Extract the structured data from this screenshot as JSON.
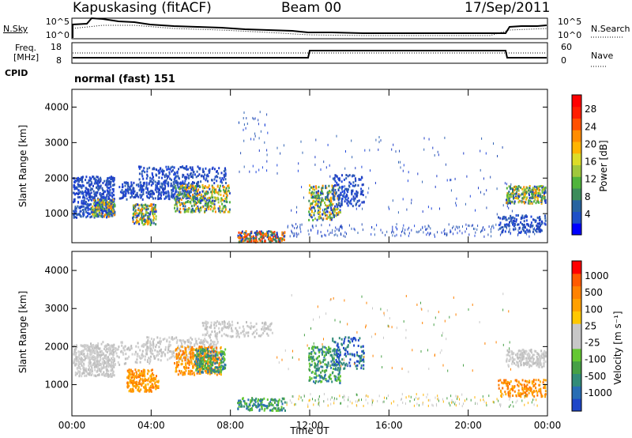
{
  "header": {
    "station": "Kapuskasing (fitACF)",
    "beam": "Beam 00",
    "date": "17/Sep/2011"
  },
  "sky_panel": {
    "left_label": "N.Sky",
    "right_label": "N.Search",
    "y_ticks_left": [
      "10^5",
      "10^0"
    ],
    "y_ticks_right": [
      "10^5",
      "10^0"
    ]
  },
  "freq_panel": {
    "left_label_1": "Freq.",
    "left_label_2": "[MHz]",
    "right_label": "Nave",
    "y_ticks_left": [
      "18",
      "8"
    ],
    "y_ticks_right": [
      "60",
      "0"
    ]
  },
  "cpid": {
    "label": "CPID",
    "value": "normal (fast) 151"
  },
  "chart_data": [
    {
      "type": "heatmap",
      "name": "power",
      "ylabel": "Slant Range [km]",
      "y_ticks": [
        "4000",
        "3000",
        "2000",
        "1000"
      ],
      "x_ticks": [
        "00:00",
        "04:00",
        "08:00",
        "12:00",
        "16:00",
        "20:00",
        "00:00"
      ],
      "xlabel": "Time UT",
      "ylim": [
        180,
        4500
      ],
      "colorbar": {
        "label": "Power [dB]",
        "ticks": [
          "28",
          "24",
          "20",
          "16",
          "12",
          "8",
          "4"
        ],
        "colors": [
          "#0000ff",
          "#1e50c8",
          "#2864a0",
          "#3c8c5a",
          "#50b43c",
          "#a0c83c",
          "#dcdc28",
          "#ffb400",
          "#ff8c00",
          "#ff5000",
          "#ff1e00",
          "#ff0000"
        ]
      }
    },
    {
      "type": "heatmap",
      "name": "velocity",
      "ylabel": "Slant Range [km]",
      "y_ticks": [
        "4000",
        "3000",
        "2000",
        "1000"
      ],
      "x_ticks": [
        "00:00",
        "04:00",
        "08:00",
        "12:00",
        "16:00",
        "20:00",
        "00:00"
      ],
      "xlabel": "Time UT",
      "ylim": [
        180,
        4500
      ],
      "colorbar": {
        "label": "Velocity [m s⁻¹]",
        "ticks": [
          "1000",
          "500",
          "100",
          "25",
          "-25",
          "-100",
          "-500",
          "-1000"
        ],
        "colors": [
          "#1e46c8",
          "#286eb4",
          "#328c78",
          "#46a046",
          "#64c832",
          "#c8c8c8",
          "#c8c8c8",
          "#ffc800",
          "#ffa000",
          "#ff8200",
          "#ff5a00",
          "#ff0000"
        ]
      }
    }
  ]
}
